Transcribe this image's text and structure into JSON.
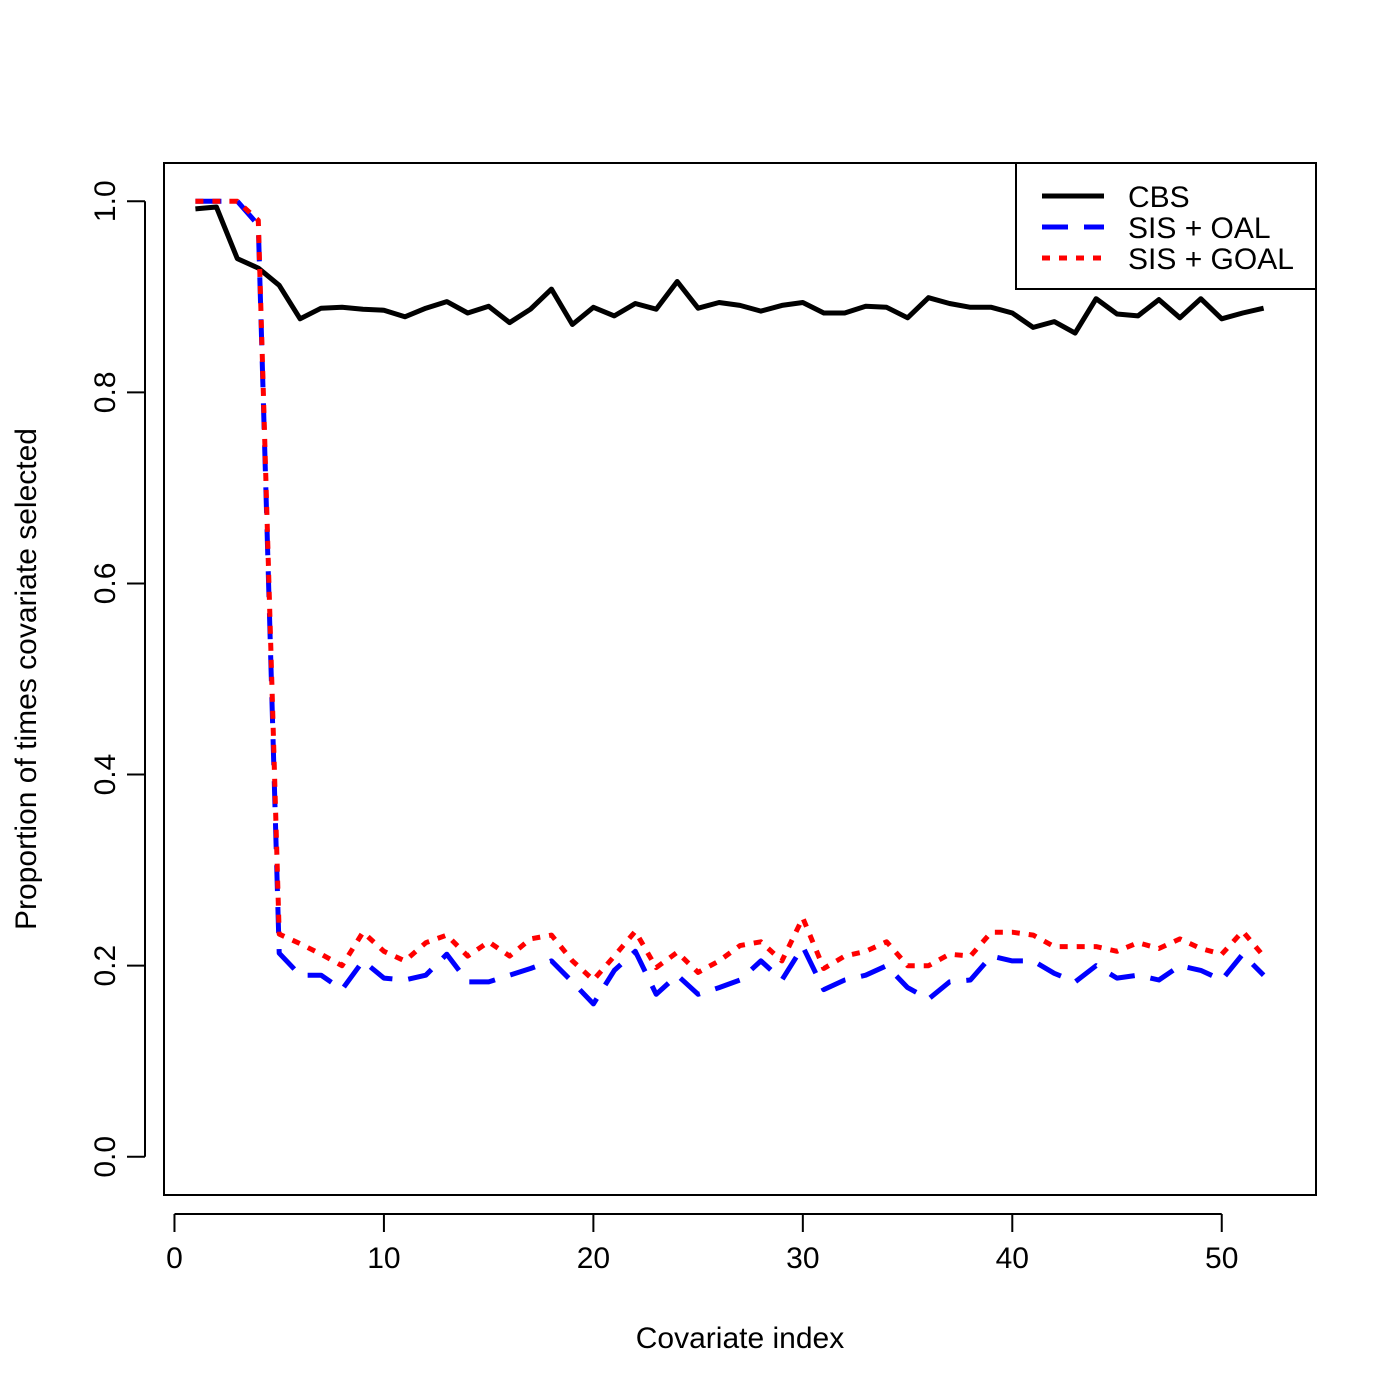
{
  "chart_data": {
    "type": "line",
    "title": "",
    "xlabel": "Covariate index",
    "ylabel": "Proportion of times covariate selected",
    "xlim": [
      -0.5,
      54.5
    ],
    "ylim": [
      -0.04,
      1.04
    ],
    "xticks": [
      0,
      10,
      20,
      30,
      40,
      50
    ],
    "xtick_labels": [
      "0",
      "10",
      "20",
      "30",
      "40",
      "50"
    ],
    "yticks": [
      0.0,
      0.2,
      0.4,
      0.6,
      0.8,
      1.0
    ],
    "ytick_labels": [
      "0.0",
      "0.2",
      "0.4",
      "0.6",
      "0.8",
      "1.0"
    ],
    "legend_position": "top-right",
    "x": [
      1,
      2,
      3,
      4,
      5,
      6,
      7,
      8,
      9,
      10,
      11,
      12,
      13,
      14,
      15,
      16,
      17,
      18,
      19,
      20,
      21,
      22,
      23,
      24,
      25,
      26,
      27,
      28,
      29,
      30,
      31,
      32,
      33,
      34,
      35,
      36,
      37,
      38,
      39,
      40,
      41,
      42,
      43,
      44,
      45,
      46,
      47,
      48,
      49,
      50,
      51,
      52
    ],
    "series": [
      {
        "name": "CBS",
        "color": "#000000",
        "dash": "solid",
        "values": [
          0.992,
          0.994,
          0.94,
          0.93,
          0.912,
          0.877,
          0.888,
          0.889,
          0.887,
          0.886,
          0.879,
          0.888,
          0.895,
          0.883,
          0.89,
          0.873,
          0.887,
          0.908,
          0.871,
          0.889,
          0.88,
          0.893,
          0.887,
          0.916,
          0.888,
          0.894,
          0.891,
          0.885,
          0.891,
          0.894,
          0.883,
          0.883,
          0.89,
          0.889,
          0.878,
          0.899,
          0.893,
          0.889,
          0.889,
          0.883,
          0.868,
          0.874,
          0.862,
          0.898,
          0.882,
          0.88,
          0.897,
          0.878,
          0.898,
          0.877,
          0.883,
          0.888
        ]
      },
      {
        "name": "SIS + OAL",
        "color": "#0000ff",
        "dash": "dashed",
        "values": [
          1.0,
          1.0,
          1.0,
          0.975,
          0.213,
          0.19,
          0.19,
          0.175,
          0.205,
          0.187,
          0.185,
          0.19,
          0.212,
          0.183,
          0.183,
          0.19,
          0.197,
          0.205,
          0.183,
          0.16,
          0.195,
          0.215,
          0.17,
          0.19,
          0.17,
          0.177,
          0.185,
          0.205,
          0.185,
          0.22,
          0.175,
          0.185,
          0.19,
          0.2,
          0.177,
          0.165,
          0.183,
          0.185,
          0.21,
          0.205,
          0.205,
          0.192,
          0.183,
          0.2,
          0.187,
          0.19,
          0.185,
          0.2,
          0.195,
          0.185,
          0.212,
          0.19
        ]
      },
      {
        "name": "SIS + GOAL",
        "color": "#ff0000",
        "dash": "dotted",
        "values": [
          1.0,
          1.0,
          1.0,
          0.98,
          0.233,
          0.223,
          0.212,
          0.2,
          0.235,
          0.215,
          0.205,
          0.224,
          0.232,
          0.21,
          0.225,
          0.21,
          0.228,
          0.232,
          0.205,
          0.185,
          0.21,
          0.236,
          0.198,
          0.214,
          0.193,
          0.205,
          0.221,
          0.225,
          0.205,
          0.25,
          0.197,
          0.21,
          0.215,
          0.225,
          0.2,
          0.2,
          0.212,
          0.21,
          0.235,
          0.235,
          0.232,
          0.22,
          0.22,
          0.22,
          0.215,
          0.224,
          0.218,
          0.228,
          0.218,
          0.212,
          0.236,
          0.21
        ]
      }
    ]
  }
}
